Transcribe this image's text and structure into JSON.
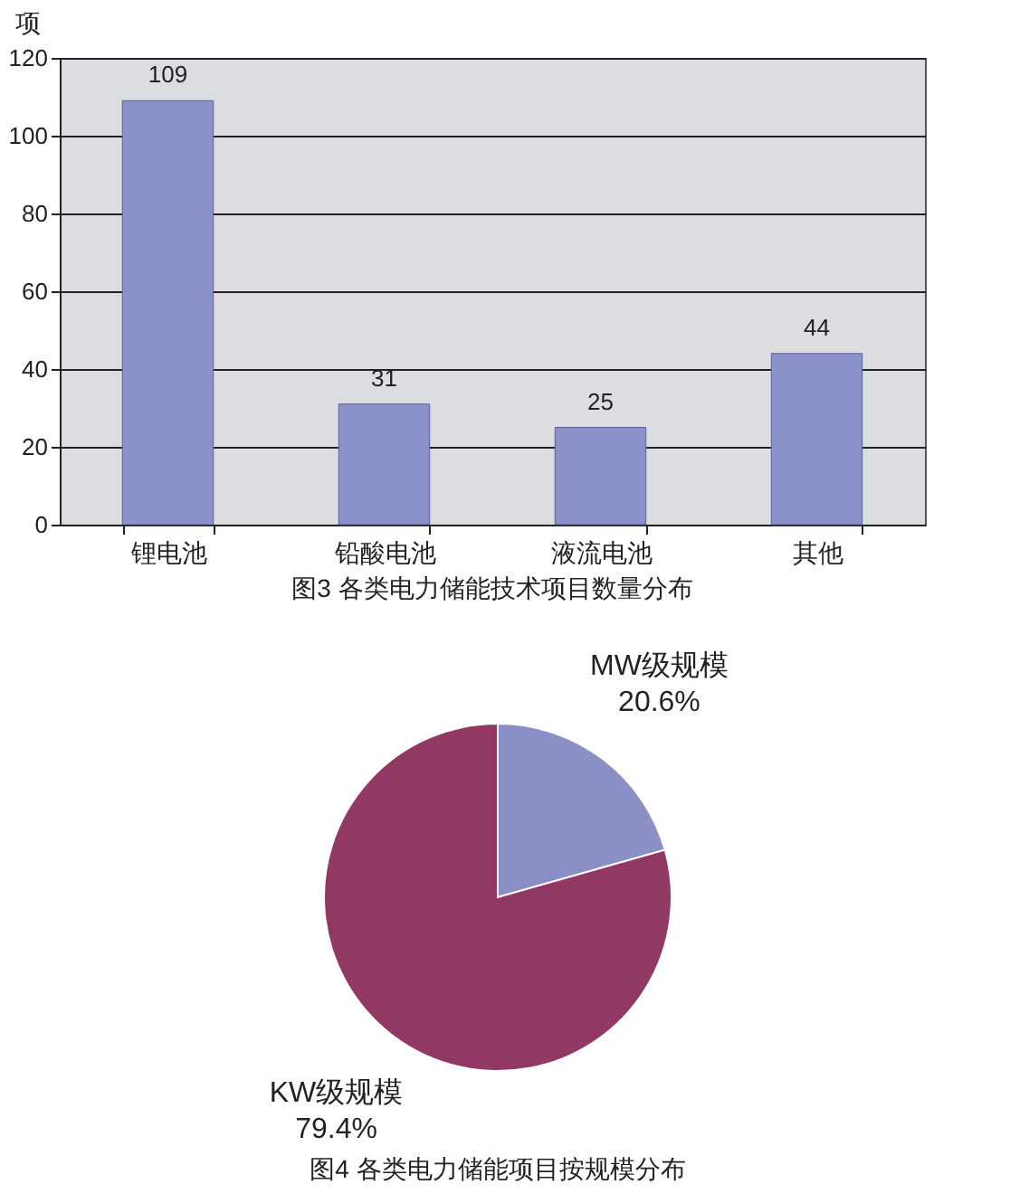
{
  "chart_data": [
    {
      "type": "bar",
      "title": "图3 各类电力储能技术项目数量分布",
      "ylabel": "项",
      "categories": [
        "锂电池",
        "铅酸电池",
        "液流电池",
        "其他"
      ],
      "values": [
        109,
        31,
        25,
        44
      ],
      "color": "#8a91c8",
      "ylim": [
        0,
        120
      ],
      "yticks": [
        0,
        20,
        40,
        60,
        80,
        100,
        120
      ],
      "grid": "y",
      "data_labels": true
    },
    {
      "type": "pie",
      "title": "图4 各类电力储能项目按规模分布",
      "categories": [
        "MW级规模",
        "KW级规模"
      ],
      "values": [
        20.6,
        79.4
      ],
      "colors": [
        "#8a90c6",
        "#913864"
      ],
      "value_labels": [
        "20.6%",
        "79.4%"
      ]
    }
  ]
}
